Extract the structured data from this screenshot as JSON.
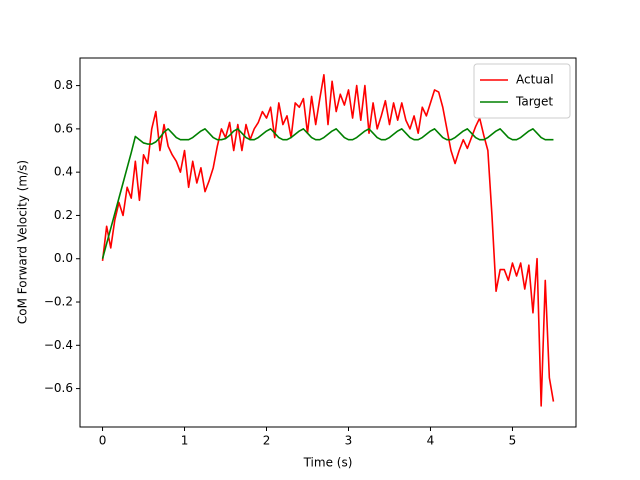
{
  "chart_data": {
    "type": "line",
    "x_label": "Time (s)",
    "y_label": "CoM Forward Velocity (m/s)",
    "x": [
      0,
      0.05,
      0.1,
      0.15,
      0.2,
      0.25,
      0.3,
      0.35,
      0.4,
      0.45,
      0.5,
      0.55,
      0.6,
      0.65,
      0.7,
      0.75,
      0.8,
      0.85,
      0.9,
      0.95,
      1.0,
      1.05,
      1.1,
      1.15,
      1.2,
      1.25,
      1.3,
      1.35,
      1.4,
      1.45,
      1.5,
      1.55,
      1.6,
      1.65,
      1.7,
      1.75,
      1.8,
      1.85,
      1.9,
      1.95,
      2.0,
      2.05,
      2.1,
      2.15,
      2.2,
      2.25,
      2.3,
      2.35,
      2.4,
      2.45,
      2.5,
      2.55,
      2.6,
      2.65,
      2.7,
      2.75,
      2.8,
      2.85,
      2.9,
      2.95,
      3.0,
      3.05,
      3.1,
      3.15,
      3.2,
      3.25,
      3.3,
      3.35,
      3.4,
      3.45,
      3.5,
      3.55,
      3.6,
      3.65,
      3.7,
      3.75,
      3.8,
      3.85,
      3.9,
      3.95,
      4.0,
      4.05,
      4.1,
      4.15,
      4.2,
      4.25,
      4.3,
      4.35,
      4.4,
      4.45,
      4.5,
      4.55,
      4.6,
      4.65,
      4.7,
      4.75,
      4.8,
      4.85,
      4.9,
      4.95,
      5.0,
      5.05,
      5.1,
      5.15,
      5.2,
      5.25,
      5.3,
      5.35,
      5.4,
      5.45,
      5.5
    ],
    "series": [
      {
        "name": "Actual",
        "color": "#ff0000",
        "values": [
          -0.01,
          0.15,
          0.05,
          0.18,
          0.26,
          0.2,
          0.33,
          0.28,
          0.45,
          0.27,
          0.48,
          0.44,
          0.6,
          0.68,
          0.5,
          0.62,
          0.52,
          0.48,
          0.45,
          0.4,
          0.5,
          0.33,
          0.45,
          0.35,
          0.42,
          0.31,
          0.36,
          0.42,
          0.52,
          0.6,
          0.56,
          0.63,
          0.5,
          0.62,
          0.5,
          0.62,
          0.55,
          0.6,
          0.63,
          0.68,
          0.65,
          0.7,
          0.56,
          0.72,
          0.62,
          0.66,
          0.56,
          0.72,
          0.7,
          0.74,
          0.58,
          0.75,
          0.62,
          0.74,
          0.85,
          0.62,
          0.82,
          0.68,
          0.76,
          0.71,
          0.78,
          0.65,
          0.8,
          0.64,
          0.8,
          0.58,
          0.72,
          0.6,
          0.66,
          0.73,
          0.62,
          0.72,
          0.64,
          0.72,
          0.64,
          0.6,
          0.66,
          0.58,
          0.7,
          0.66,
          0.72,
          0.78,
          0.77,
          0.7,
          0.6,
          0.5,
          0.44,
          0.5,
          0.55,
          0.51,
          0.56,
          0.61,
          0.65,
          0.57,
          0.5,
          0.2,
          -0.15,
          -0.05,
          -0.05,
          -0.1,
          -0.02,
          -0.08,
          -0.02,
          -0.14,
          -0.03,
          -0.25,
          0.0,
          -0.68,
          -0.1,
          -0.55,
          -0.66
        ]
      },
      {
        "name": "Target",
        "color": "#008000",
        "values": [
          0,
          0.07,
          0.14,
          0.21,
          0.28,
          0.35,
          0.42,
          0.49,
          0.565,
          0.55,
          0.535,
          0.53,
          0.53,
          0.54,
          0.56,
          0.585,
          0.6,
          0.58,
          0.56,
          0.55,
          0.55,
          0.55,
          0.56,
          0.575,
          0.59,
          0.6,
          0.58,
          0.56,
          0.55,
          0.55,
          0.555,
          0.57,
          0.59,
          0.6,
          0.58,
          0.56,
          0.55,
          0.55,
          0.56,
          0.575,
          0.59,
          0.6,
          0.58,
          0.56,
          0.55,
          0.55,
          0.56,
          0.575,
          0.59,
          0.6,
          0.58,
          0.56,
          0.55,
          0.55,
          0.56,
          0.575,
          0.59,
          0.6,
          0.58,
          0.56,
          0.55,
          0.55,
          0.56,
          0.575,
          0.59,
          0.6,
          0.58,
          0.56,
          0.55,
          0.55,
          0.56,
          0.575,
          0.59,
          0.6,
          0.58,
          0.56,
          0.55,
          0.55,
          0.56,
          0.575,
          0.59,
          0.6,
          0.58,
          0.56,
          0.55,
          0.55,
          0.56,
          0.575,
          0.59,
          0.6,
          0.58,
          0.56,
          0.55,
          0.55,
          0.56,
          0.575,
          0.59,
          0.6,
          0.58,
          0.56,
          0.55,
          0.55,
          0.56,
          0.575,
          0.59,
          0.6,
          0.58,
          0.56,
          0.55,
          0.55,
          0.55
        ]
      }
    ],
    "xlim": [
      -0.275,
      5.775
    ],
    "ylim": [
      -0.7775,
      0.9275
    ],
    "xticks": [
      0,
      1,
      2,
      3,
      4,
      5
    ],
    "yticks": [
      {
        "value": -0.6,
        "label": "−0.6"
      },
      {
        "value": -0.4,
        "label": "−0.4"
      },
      {
        "value": -0.2,
        "label": "−0.2"
      },
      {
        "value": 0,
        "label": "0.0"
      },
      0.2,
      0.4,
      0.6,
      0.8
    ],
    "legend": "upper right"
  }
}
